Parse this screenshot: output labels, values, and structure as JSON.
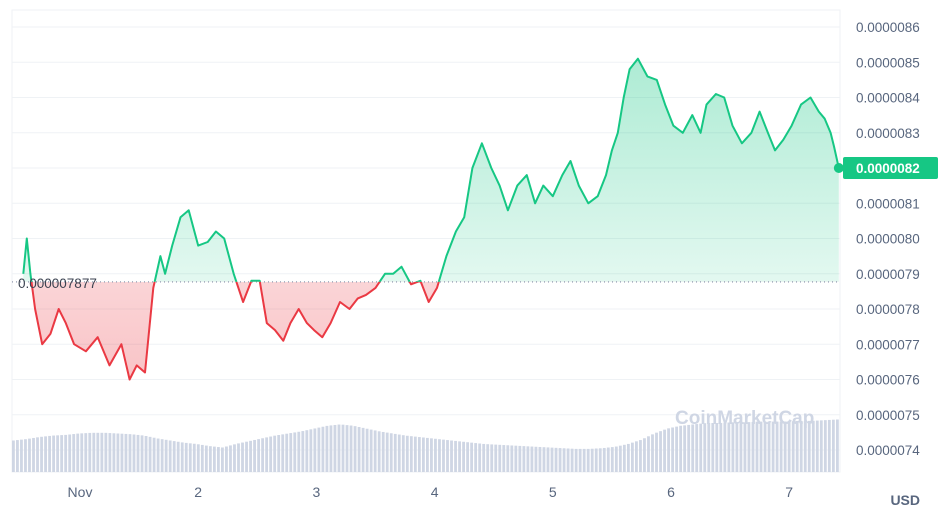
{
  "chart_data": {
    "type": "area",
    "ylabel": "",
    "xlabel": "",
    "unit": "USD",
    "ylim": [
      7.35e-06,
      8.65e-06
    ],
    "y_ticks": [
      "0.0000086",
      "0.0000085",
      "0.0000084",
      "0.0000083",
      "0.0000082",
      "0.0000081",
      "0.0000080",
      "0.0000079",
      "0.0000078",
      "0.0000077",
      "0.0000076",
      "0.0000075",
      "0.0000074"
    ],
    "y_tick_values": [
      8.6e-06,
      8.5e-06,
      8.4e-06,
      8.3e-06,
      8.2e-06,
      8.1e-06,
      8e-06,
      7.9e-06,
      7.8e-06,
      7.7e-06,
      7.6e-06,
      7.5e-06,
      7.4e-06
    ],
    "x_ticks": [
      "Nov",
      "2",
      "3",
      "4",
      "5",
      "6",
      "7"
    ],
    "x_tick_days": [
      1,
      2,
      3,
      4,
      5,
      6,
      7
    ],
    "x_range_days": [
      0.45,
      7.45
    ],
    "reference_price": 7.877e-06,
    "reference_label": "0.000007877",
    "current_price": 8.2e-06,
    "current_label": "0.0000082",
    "colors": {
      "up": "#16c784",
      "down": "#ea3943",
      "volume": "#cfd6e4",
      "reference": "#a1a7bb"
    },
    "watermark": "CoinMarketCap",
    "series": [
      {
        "day": [
          0.52,
          0.55,
          0.58,
          0.62,
          0.68,
          0.75,
          0.82,
          0.88,
          0.95,
          1.05,
          1.15,
          1.25,
          1.35,
          1.42,
          1.48,
          1.55,
          1.62,
          1.68,
          1.72,
          1.78,
          1.85,
          1.92,
          2.0,
          2.08,
          2.15,
          2.22,
          2.3,
          2.38,
          2.45,
          2.52,
          2.58,
          2.65,
          2.72,
          2.78,
          2.85,
          2.92,
          2.98,
          3.05,
          3.12,
          3.2,
          3.28,
          3.35,
          3.42,
          3.5,
          3.58,
          3.65,
          3.72,
          3.8,
          3.88,
          3.95,
          4.02,
          4.1,
          4.18,
          4.25,
          4.32,
          4.4,
          4.48,
          4.55,
          4.62,
          4.7,
          4.78,
          4.85,
          4.92,
          5.0,
          5.08,
          5.15,
          5.22,
          5.3,
          5.38,
          5.45,
          5.5,
          5.55,
          5.6,
          5.65,
          5.72,
          5.8,
          5.88,
          5.95,
          6.02,
          6.1,
          6.18,
          6.25,
          6.3,
          6.38,
          6.45,
          6.52,
          6.6,
          6.68,
          6.75,
          6.82,
          6.88,
          6.95,
          7.02,
          7.1,
          7.18,
          7.25,
          7.3,
          7.35,
          7.38,
          7.42
        ],
        "price": [
          7.9e-06,
          8e-06,
          7.9e-06,
          7.8e-06,
          7.7e-06,
          7.73e-06,
          7.8e-06,
          7.76e-06,
          7.7e-06,
          7.68e-06,
          7.72e-06,
          7.64e-06,
          7.7e-06,
          7.6e-06,
          7.64e-06,
          7.62e-06,
          7.86e-06,
          7.95e-06,
          7.9e-06,
          7.98e-06,
          8.06e-06,
          8.08e-06,
          7.98e-06,
          7.99e-06,
          8.02e-06,
          8e-06,
          7.9e-06,
          7.82e-06,
          7.88e-06,
          7.88e-06,
          7.76e-06,
          7.74e-06,
          7.71e-06,
          7.76e-06,
          7.8e-06,
          7.76e-06,
          7.74e-06,
          7.72e-06,
          7.76e-06,
          7.82e-06,
          7.8e-06,
          7.83e-06,
          7.84e-06,
          7.86e-06,
          7.9e-06,
          7.9e-06,
          7.92e-06,
          7.87e-06,
          7.88e-06,
          7.82e-06,
          7.86e-06,
          7.95e-06,
          8.02e-06,
          8.06e-06,
          8.2e-06,
          8.27e-06,
          8.2e-06,
          8.15e-06,
          8.08e-06,
          8.15e-06,
          8.18e-06,
          8.1e-06,
          8.15e-06,
          8.12e-06,
          8.18e-06,
          8.22e-06,
          8.15e-06,
          8.1e-06,
          8.12e-06,
          8.18e-06,
          8.25e-06,
          8.3e-06,
          8.4e-06,
          8.48e-06,
          8.51e-06,
          8.46e-06,
          8.45e-06,
          8.38e-06,
          8.32e-06,
          8.3e-06,
          8.35e-06,
          8.3e-06,
          8.38e-06,
          8.41e-06,
          8.4e-06,
          8.32e-06,
          8.27e-06,
          8.3e-06,
          8.36e-06,
          8.3e-06,
          8.25e-06,
          8.28e-06,
          8.32e-06,
          8.38e-06,
          8.4e-06,
          8.36e-06,
          8.34e-06,
          8.3e-06,
          8.26e-06,
          8.2e-06
        ]
      }
    ],
    "volume_relative": [
      0.45,
      0.47,
      0.5,
      0.52,
      0.53,
      0.55,
      0.56,
      0.56,
      0.55,
      0.54,
      0.52,
      0.48,
      0.45,
      0.42,
      0.4,
      0.37,
      0.35,
      0.4,
      0.44,
      0.48,
      0.52,
      0.55,
      0.58,
      0.62,
      0.66,
      0.68,
      0.66,
      0.62,
      0.58,
      0.55,
      0.52,
      0.5,
      0.48,
      0.46,
      0.44,
      0.42,
      0.4,
      0.39,
      0.38,
      0.37,
      0.36,
      0.35,
      0.34,
      0.33,
      0.33,
      0.34,
      0.36,
      0.4,
      0.46,
      0.55,
      0.62,
      0.66,
      0.68,
      0.7,
      0.7,
      0.71,
      0.71,
      0.72,
      0.72,
      0.72,
      0.73,
      0.73,
      0.74,
      0.75
    ]
  }
}
